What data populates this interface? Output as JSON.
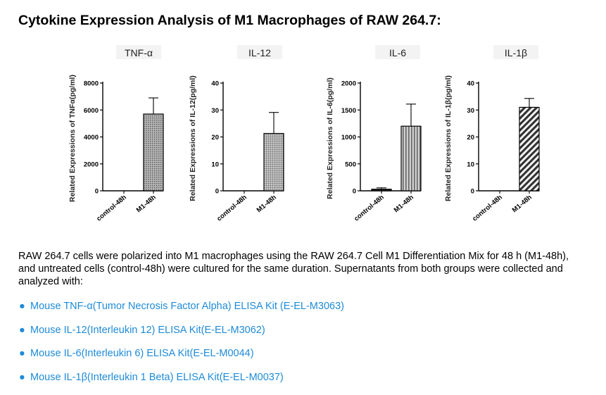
{
  "heading": "Cytokine Expression Analysis of M1 Macrophages of RAW 264.7:",
  "chart_data": [
    {
      "type": "bar",
      "title": "TNF-α",
      "ylabel": "Related Expressions of TNFα(pg/ml)",
      "categories": [
        "control-48h",
        "M1-48h"
      ],
      "values": [
        0,
        5700
      ],
      "errors": [
        0,
        1200
      ],
      "ylim": [
        0,
        8000
      ],
      "yticks": [
        "0",
        "2000",
        "4000",
        "6000",
        "8000"
      ],
      "grid": false,
      "bar_patterns": [
        "none",
        "dots"
      ]
    },
    {
      "type": "bar",
      "title": "IL-12",
      "ylabel": "Related Expressions of IL-12(pg/ml)",
      "categories": [
        "control-48h",
        "M1-48h"
      ],
      "values": [
        0,
        21.3
      ],
      "errors": [
        0,
        7.8
      ],
      "ylim": [
        0,
        40
      ],
      "yticks": [
        "0",
        "10",
        "20",
        "30",
        "40"
      ],
      "grid": false,
      "bar_patterns": [
        "none",
        "grid"
      ]
    },
    {
      "type": "bar",
      "title": "IL-6",
      "ylabel": "Related Expressions of IL-6(pg/ml)",
      "categories": [
        "control-48h",
        "M1-48h"
      ],
      "values": [
        30,
        1200
      ],
      "errors": [
        25,
        410
      ],
      "ylim": [
        0,
        2000
      ],
      "yticks": [
        "0",
        "500",
        "1000",
        "1500",
        "2000"
      ],
      "grid": false,
      "bar_patterns": [
        "solid-black",
        "vertical-stripes"
      ]
    },
    {
      "type": "bar",
      "title": "IL-1β",
      "ylabel": "Related Expressions of IL-1β(pg/ml)",
      "categories": [
        "control-48h",
        "M1-48h"
      ],
      "values": [
        0,
        31
      ],
      "errors": [
        0,
        3.3
      ],
      "ylim": [
        0,
        40
      ],
      "yticks": [
        "0",
        "10",
        "20",
        "30",
        "40"
      ],
      "grid": false,
      "bar_patterns": [
        "none",
        "diagonal-stripes"
      ]
    }
  ],
  "description": "RAW 264.7 cells were polarized into M1 macrophages using the RAW 264.7 Cell M1 Differentiation Mix for 48 h (M1-48h), and untreated cells (control-48h) were cultured for the same duration. Supernatants from both groups were collected and analyzed with:",
  "links": [
    {
      "bullet": "●",
      "label": "Mouse TNF-α(Tumor Necrosis Factor Alpha) ELISA Kit (E-EL-M3063)"
    },
    {
      "bullet": "●",
      "label": "Mouse IL-12(Interleukin 12) ELISA Kit(E-EL-M3062)"
    },
    {
      "bullet": "●",
      "label": "Mouse IL-6(Interleukin 6) ELISA Kit(E-EL-M0044)"
    },
    {
      "bullet": "●",
      "label": "Mouse IL-1β(Interleukin 1 Beta) ELISA Kit(E-EL-M0037)"
    }
  ],
  "colors": {
    "link": "#1e8bd9",
    "bar_fill": "#9a9a9a",
    "title_box": "#f3f3f3"
  }
}
